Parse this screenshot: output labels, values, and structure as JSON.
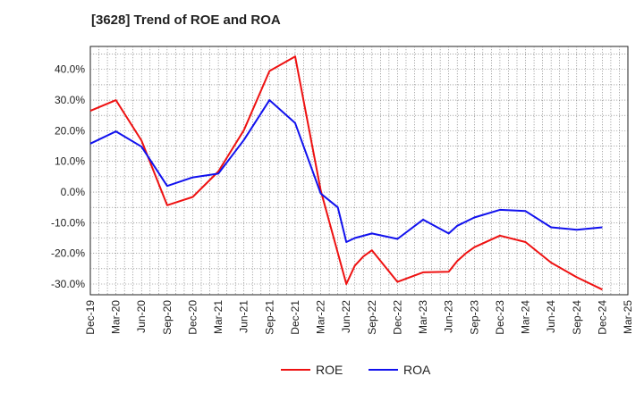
{
  "chart_data": {
    "type": "line",
    "title": "[3628]  Trend of ROE and ROA",
    "xlabel": "",
    "ylabel": "",
    "x_tick_labels": [
      "Dec-19",
      "Mar-20",
      "Jun-20",
      "Sep-20",
      "Dec-20",
      "Mar-21",
      "Jun-21",
      "Sep-21",
      "Dec-21",
      "Mar-22",
      "Jun-22",
      "Sep-22",
      "Dec-22",
      "Mar-23",
      "Jun-23",
      "Sep-23",
      "Dec-23",
      "Mar-24",
      "Jun-24",
      "Sep-24",
      "Dec-24",
      "Mar-25"
    ],
    "y_tick_labels": [
      "40.0%",
      "30.0%",
      "20.0%",
      "10.0%",
      "0.0%",
      "-10.0%",
      "-20.0%",
      "-30.0%"
    ],
    "y_ticks": [
      40,
      30,
      20,
      10,
      0,
      -10,
      -20,
      -30
    ],
    "ylim": [
      -33.5,
      47.5
    ],
    "grid": true,
    "legend_position": "bottom-center",
    "series": [
      {
        "name": "ROE",
        "color": "#ee1111",
        "x": [
          "Dec-19",
          "Mar-20",
          "Jun-20",
          "Sep-20",
          "Dec-20",
          "Mar-21",
          "Jun-21",
          "Sep-21",
          "Dec-21",
          "Mar-22",
          "Jun-22",
          "Jul-22",
          "Aug-22",
          "Sep-22",
          "Dec-22",
          "Mar-23",
          "Jun-23",
          "Jul-23",
          "Aug-23",
          "Sep-23",
          "Dec-23",
          "Mar-24",
          "Jun-24",
          "Sep-24",
          "Dec-24"
        ],
        "values": [
          26.5,
          30.0,
          16.8,
          -4.3,
          -1.6,
          6.7,
          20.2,
          39.5,
          44.2,
          0.5,
          -30.0,
          -24.0,
          -21.0,
          -19.0,
          -29.3,
          -26.2,
          -26.0,
          -22.5,
          -20.0,
          -18.0,
          -14.2,
          -16.3,
          -23.0,
          -27.8,
          -31.8
        ]
      },
      {
        "name": "ROA",
        "color": "#1111ee",
        "x": [
          "Dec-19",
          "Mar-20",
          "Jun-20",
          "Sep-20",
          "Dec-20",
          "Mar-21",
          "Jun-21",
          "Sep-21",
          "Dec-21",
          "Mar-22",
          "May-22",
          "Jun-22",
          "Jul-22",
          "Sep-22",
          "Dec-22",
          "Mar-23",
          "Jun-23",
          "Jul-23",
          "Sep-23",
          "Dec-23",
          "Mar-24",
          "Jun-24",
          "Sep-24",
          "Dec-24"
        ],
        "values": [
          15.8,
          19.8,
          14.8,
          2.0,
          4.8,
          6.0,
          17.0,
          30.0,
          22.5,
          -0.5,
          -5.0,
          -16.3,
          -15.0,
          -13.5,
          -15.3,
          -9.0,
          -13.5,
          -11.0,
          -8.3,
          -5.8,
          -6.2,
          -11.5,
          -12.3,
          -11.5
        ]
      }
    ]
  }
}
